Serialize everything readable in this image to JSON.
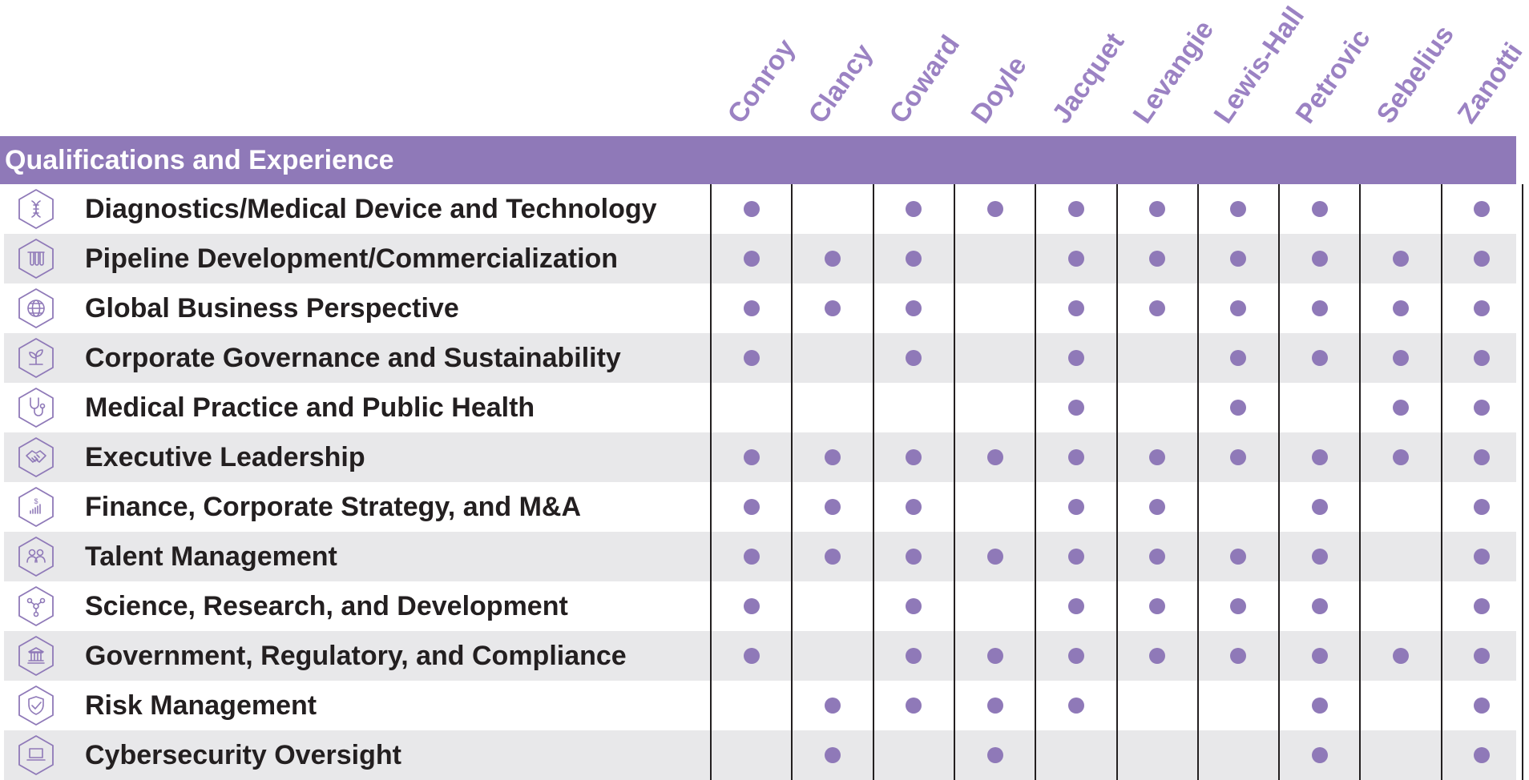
{
  "section_title": "Qualifications and Experience",
  "accent_color": "#8f79b8",
  "directors": [
    "Conroy",
    "Clancy",
    "Coward",
    "Doyle",
    "Jacquet",
    "Levangie",
    "Lewis-Hall",
    "Petrovic",
    "Sebelius",
    "Zanotti"
  ],
  "rows": [
    {
      "label": "Diagnostics/Medical Device and Technology",
      "icon": "dna-icon",
      "marks": [
        1,
        0,
        1,
        1,
        1,
        1,
        1,
        1,
        0,
        1
      ]
    },
    {
      "label": "Pipeline Development/Commercialization",
      "icon": "test-tubes-icon",
      "marks": [
        1,
        1,
        1,
        0,
        1,
        1,
        1,
        1,
        1,
        1
      ]
    },
    {
      "label": "Global Business Perspective",
      "icon": "globe-icon",
      "marks": [
        1,
        1,
        1,
        0,
        1,
        1,
        1,
        1,
        1,
        1
      ]
    },
    {
      "label": "Corporate Governance and Sustainability",
      "icon": "sprout-icon",
      "marks": [
        1,
        0,
        1,
        0,
        1,
        0,
        1,
        1,
        1,
        1
      ]
    },
    {
      "label": "Medical Practice and Public Health",
      "icon": "stethoscope-icon",
      "marks": [
        0,
        0,
        0,
        0,
        1,
        0,
        1,
        0,
        1,
        1
      ]
    },
    {
      "label": "Executive Leadership",
      "icon": "handshake-icon",
      "marks": [
        1,
        1,
        1,
        1,
        1,
        1,
        1,
        1,
        1,
        1
      ]
    },
    {
      "label": "Finance, Corporate Strategy, and M&A",
      "icon": "finance-chart-icon",
      "marks": [
        1,
        1,
        1,
        0,
        1,
        1,
        0,
        1,
        0,
        1
      ]
    },
    {
      "label": "Talent Management",
      "icon": "people-icon",
      "marks": [
        1,
        1,
        1,
        1,
        1,
        1,
        1,
        1,
        0,
        1
      ]
    },
    {
      "label": "Science, Research, and Development",
      "icon": "molecule-icon",
      "marks": [
        1,
        0,
        1,
        0,
        1,
        1,
        1,
        1,
        0,
        1
      ]
    },
    {
      "label": "Government, Regulatory, and Compliance",
      "icon": "government-building-icon",
      "marks": [
        1,
        0,
        1,
        1,
        1,
        1,
        1,
        1,
        1,
        1
      ]
    },
    {
      "label": "Risk Management",
      "icon": "shield-icon",
      "marks": [
        0,
        1,
        1,
        1,
        1,
        0,
        0,
        1,
        0,
        1
      ]
    },
    {
      "label": "Cybersecurity Oversight",
      "icon": "laptop-icon",
      "marks": [
        0,
        1,
        0,
        1,
        0,
        0,
        0,
        1,
        0,
        1
      ]
    }
  ]
}
